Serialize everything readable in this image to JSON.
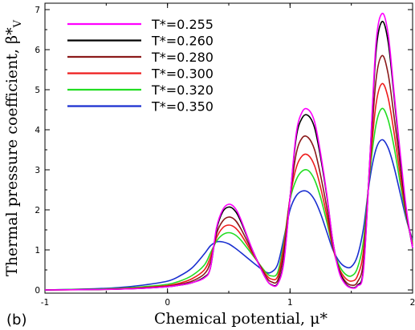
{
  "panel_label": "(b)",
  "chart_data": {
    "type": "line",
    "xlabel": "Chemical potential, μ*",
    "ylabel": "Thermal pressure coefficient, β*",
    "ylabel_sub": "V",
    "xlim": [
      -1,
      2
    ],
    "ylim": [
      0,
      7.2
    ],
    "xticks": [
      "-1",
      "0",
      "1",
      "2"
    ],
    "yticks": [
      "0",
      "1",
      "2",
      "3",
      "4",
      "5",
      "6",
      "7"
    ],
    "grid": false,
    "legend_position": "top-left",
    "series": [
      {
        "name": "T*=0.255",
        "color": "#ff00ff",
        "x": [
          -1.0,
          -0.6,
          -0.4,
          -0.2,
          0.0,
          0.1,
          0.2,
          0.3,
          0.35,
          0.4,
          0.45,
          0.5,
          0.55,
          0.6,
          0.7,
          0.8,
          0.85,
          0.9,
          0.95,
          1.0,
          1.05,
          1.1,
          1.15,
          1.2,
          1.25,
          1.3,
          1.35,
          1.4,
          1.45,
          1.5,
          1.55,
          1.6,
          1.65,
          1.7,
          1.75,
          1.8,
          1.85,
          1.9,
          1.95,
          2.0
        ],
        "y": [
          0.0,
          0.01,
          0.02,
          0.04,
          0.08,
          0.12,
          0.18,
          0.3,
          0.55,
          1.55,
          2.0,
          2.14,
          2.05,
          1.75,
          0.95,
          0.3,
          0.12,
          0.15,
          0.7,
          2.3,
          3.9,
          4.45,
          4.5,
          4.2,
          3.4,
          2.4,
          1.2,
          0.45,
          0.15,
          0.05,
          0.1,
          0.5,
          3.2,
          6.1,
          6.9,
          6.4,
          4.9,
          3.4,
          2.0,
          1.05
        ]
      },
      {
        "name": "T*=0.260",
        "color": "#000000",
        "x": [
          -1.0,
          -0.6,
          -0.4,
          -0.2,
          0.0,
          0.1,
          0.2,
          0.3,
          0.35,
          0.4,
          0.45,
          0.5,
          0.55,
          0.6,
          0.7,
          0.8,
          0.85,
          0.9,
          0.95,
          1.0,
          1.05,
          1.1,
          1.15,
          1.2,
          1.25,
          1.3,
          1.35,
          1.4,
          1.45,
          1.5,
          1.55,
          1.6,
          1.65,
          1.7,
          1.75,
          1.8,
          1.85,
          1.9,
          1.95,
          2.0
        ],
        "y": [
          0.0,
          0.01,
          0.02,
          0.04,
          0.08,
          0.12,
          0.18,
          0.32,
          0.55,
          1.5,
          1.95,
          2.07,
          1.98,
          1.7,
          0.95,
          0.3,
          0.13,
          0.17,
          0.75,
          2.3,
          3.8,
          4.3,
          4.35,
          4.05,
          3.3,
          2.35,
          1.2,
          0.48,
          0.17,
          0.06,
          0.12,
          0.55,
          3.2,
          5.9,
          6.7,
          6.2,
          4.8,
          3.3,
          1.95,
          1.05
        ]
      },
      {
        "name": "T*=0.280",
        "color": "#8b1a1a",
        "x": [
          -1.0,
          -0.6,
          -0.4,
          -0.2,
          0.0,
          0.1,
          0.2,
          0.3,
          0.35,
          0.4,
          0.45,
          0.5,
          0.55,
          0.6,
          0.7,
          0.8,
          0.85,
          0.9,
          0.95,
          1.0,
          1.05,
          1.1,
          1.15,
          1.2,
          1.25,
          1.3,
          1.35,
          1.4,
          1.45,
          1.5,
          1.55,
          1.6,
          1.65,
          1.7,
          1.75,
          1.8,
          1.85,
          1.9,
          1.95,
          2.0
        ],
        "y": [
          0.0,
          0.01,
          0.02,
          0.05,
          0.09,
          0.14,
          0.22,
          0.4,
          0.7,
          1.4,
          1.72,
          1.82,
          1.75,
          1.52,
          0.92,
          0.35,
          0.2,
          0.25,
          0.95,
          2.3,
          3.4,
          3.8,
          3.8,
          3.5,
          2.85,
          2.05,
          1.1,
          0.5,
          0.22,
          0.12,
          0.2,
          0.75,
          3.1,
          5.2,
          5.85,
          5.4,
          4.3,
          3.1,
          1.9,
          1.1
        ]
      },
      {
        "name": "T*=0.300",
        "color": "#ee1c1c",
        "x": [
          -1.0,
          -0.6,
          -0.4,
          -0.2,
          0.0,
          0.1,
          0.2,
          0.3,
          0.35,
          0.4,
          0.45,
          0.5,
          0.55,
          0.6,
          0.7,
          0.8,
          0.85,
          0.9,
          0.95,
          1.0,
          1.05,
          1.1,
          1.15,
          1.2,
          1.25,
          1.3,
          1.35,
          1.4,
          1.45,
          1.5,
          1.55,
          1.6,
          1.65,
          1.7,
          1.75,
          1.8,
          1.85,
          1.9,
          1.95,
          2.0
        ],
        "y": [
          0.0,
          0.01,
          0.03,
          0.06,
          0.11,
          0.17,
          0.28,
          0.5,
          0.82,
          1.3,
          1.55,
          1.62,
          1.56,
          1.38,
          0.88,
          0.4,
          0.27,
          0.35,
          1.1,
          2.3,
          3.05,
          3.35,
          3.36,
          3.1,
          2.55,
          1.85,
          1.05,
          0.55,
          0.3,
          0.22,
          0.35,
          1.0,
          3.0,
          4.6,
          5.15,
          4.8,
          3.9,
          2.85,
          1.85,
          1.15
        ]
      },
      {
        "name": "T*=0.320",
        "color": "#22dd22",
        "x": [
          -1.0,
          -0.6,
          -0.4,
          -0.2,
          0.0,
          0.1,
          0.2,
          0.3,
          0.35,
          0.4,
          0.45,
          0.5,
          0.55,
          0.6,
          0.7,
          0.8,
          0.85,
          0.9,
          0.95,
          1.0,
          1.05,
          1.1,
          1.15,
          1.2,
          1.25,
          1.3,
          1.35,
          1.4,
          1.45,
          1.5,
          1.55,
          1.6,
          1.65,
          1.7,
          1.75,
          1.8,
          1.85,
          1.9,
          1.95,
          2.0
        ],
        "y": [
          0.0,
          0.02,
          0.04,
          0.08,
          0.14,
          0.22,
          0.36,
          0.62,
          0.92,
          1.22,
          1.38,
          1.43,
          1.38,
          1.24,
          0.85,
          0.45,
          0.35,
          0.45,
          1.2,
          2.25,
          2.75,
          2.97,
          2.98,
          2.75,
          2.3,
          1.7,
          1.05,
          0.62,
          0.4,
          0.35,
          0.55,
          1.25,
          2.9,
          4.1,
          4.53,
          4.25,
          3.55,
          2.65,
          1.8,
          1.2
        ]
      },
      {
        "name": "T*=0.350",
        "color": "#1a2fd0",
        "x": [
          -1.0,
          -0.6,
          -0.4,
          -0.2,
          0.0,
          0.1,
          0.2,
          0.3,
          0.35,
          0.4,
          0.45,
          0.5,
          0.55,
          0.6,
          0.7,
          0.8,
          0.85,
          0.9,
          0.95,
          1.0,
          1.05,
          1.1,
          1.15,
          1.2,
          1.25,
          1.3,
          1.35,
          1.4,
          1.45,
          1.5,
          1.55,
          1.6,
          1.65,
          1.7,
          1.75,
          1.8,
          1.85,
          1.9,
          1.95,
          2.0
        ],
        "y": [
          0.0,
          0.03,
          0.06,
          0.12,
          0.22,
          0.35,
          0.55,
          0.9,
          1.1,
          1.2,
          1.2,
          1.15,
          1.05,
          0.93,
          0.68,
          0.45,
          0.45,
          0.65,
          1.3,
          2.0,
          2.35,
          2.47,
          2.44,
          2.25,
          1.9,
          1.45,
          1.0,
          0.72,
          0.58,
          0.58,
          0.85,
          1.55,
          2.75,
          3.5,
          3.75,
          3.55,
          3.05,
          2.4,
          1.75,
          1.25
        ]
      }
    ]
  }
}
